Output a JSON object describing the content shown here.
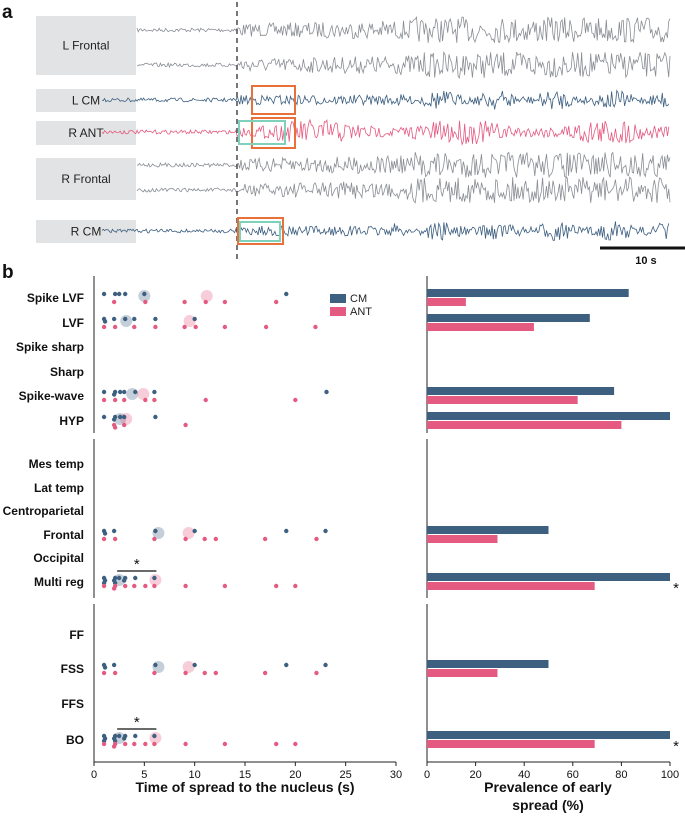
{
  "colors": {
    "cm": "#3d5f80",
    "ant": "#e55a80",
    "grey_trace": "#7d8288",
    "label_box": "#e2e3e4",
    "orange_box": "#e8703a",
    "green_box": "#7fd1bb",
    "axis": "#222222"
  },
  "panel_a": {
    "letter": "a",
    "channels": [
      {
        "label": "L Frontal",
        "color": "grey",
        "traces": 2,
        "amp": 0.2
      },
      {
        "label": "L CM",
        "color": "cm",
        "traces": 1,
        "amp": 0.45
      },
      {
        "label": "R ANT",
        "color": "ant",
        "traces": 1,
        "amp": 0.55
      },
      {
        "label": "R Frontal",
        "color": "grey",
        "traces": 2,
        "amp": 0.2
      },
      {
        "label": "R CM",
        "color": "cm",
        "traces": 1,
        "amp": 0.45
      }
    ],
    "scale_bar_label": "10 s",
    "scale_bar_seconds": 10,
    "seizure_onset_s": 10.5,
    "record_length_s": 58
  },
  "panel_b": {
    "letter": "b",
    "left_axis_title": "Time of spread to the nucleus (s)",
    "right_axis_title_line1": "Prevalence of early",
    "right_axis_title_line2": "spread (%)"
  },
  "chart_data": [
    {
      "type": "scatter",
      "title": "",
      "xlabel": "Time of spread to the nucleus (s)",
      "xlim": [
        0,
        30
      ],
      "xticks": [
        0,
        5,
        10,
        15,
        20,
        25,
        30
      ],
      "legend": [
        {
          "name": "CM",
          "color": "#3d5f80"
        },
        {
          "name": "ANT",
          "color": "#e55a80"
        }
      ],
      "legend_position": "top-right",
      "groups": [
        {
          "categories": [
            {
              "label": "Spike LVF",
              "cm": [
                1,
                2,
                2.5,
                3,
                5,
                19
              ],
              "ant": [
                2,
                5,
                9,
                11,
                13,
                18
              ],
              "cm_mean": 5,
              "ant_mean": 11.2
            },
            {
              "label": "LVF",
              "cm": [
                1,
                1,
                2,
                3,
                4,
                6,
                10
              ],
              "ant": [
                1,
                2,
                4,
                6,
                9,
                10,
                13,
                17,
                22
              ],
              "cm_mean": 3.2,
              "ant_mean": 9.5
            },
            {
              "label": "Spike sharp",
              "cm": [],
              "ant": []
            },
            {
              "label": "Sharp",
              "cm": [],
              "ant": []
            },
            {
              "label": "Spike-wave",
              "cm": [
                1,
                2,
                2,
                2.5,
                3,
                4,
                6,
                23
              ],
              "ant": [
                1,
                2,
                3,
                5,
                6,
                11,
                20
              ],
              "cm_mean": 3.8,
              "ant_mean": 4.9
            },
            {
              "label": "HYP",
              "cm": [
                1,
                2,
                2,
                2.5,
                3,
                6
              ],
              "ant": [
                2,
                2,
                3,
                9
              ],
              "cm_mean": 2.6,
              "ant_mean": 3.2
            }
          ]
        },
        {
          "categories": [
            {
              "label": "Mes temp",
              "cm": [],
              "ant": []
            },
            {
              "label": "Lat temp",
              "cm": [],
              "ant": []
            },
            {
              "label": "Centroparietal",
              "cm": [],
              "ant": []
            },
            {
              "label": "Frontal",
              "cm": [
                1,
                1,
                2,
                6,
                10,
                19,
                23
              ],
              "ant": [
                1,
                2,
                6,
                9,
                11,
                12,
                17,
                22
              ],
              "cm_mean": 6.4,
              "ant_mean": 9.4
            },
            {
              "label": "Occipital",
              "cm": [],
              "ant": []
            },
            {
              "label": "Multi reg",
              "cm": [
                1,
                1,
                1,
                2,
                2,
                2,
                2.5,
                3,
                3,
                4,
                6
              ],
              "ant": [
                1,
                2,
                2,
                3,
                4,
                5,
                6,
                9,
                13,
                18,
                20
              ],
              "cm_mean": 2.5,
              "ant_mean": 6.1,
              "significance": {
                "from": 2.3,
                "to": 6.2,
                "label": "*"
              }
            }
          ]
        },
        {
          "categories": [
            {
              "label": "FF",
              "cm": [],
              "ant": []
            },
            {
              "label": "FSS",
              "cm": [
                1,
                1,
                2,
                6,
                10,
                19,
                23
              ],
              "ant": [
                1,
                2,
                6,
                9,
                11,
                12,
                17,
                22
              ],
              "cm_mean": 6.4,
              "ant_mean": 9.4
            },
            {
              "label": "FFS",
              "cm": [],
              "ant": []
            },
            {
              "label": "BO",
              "cm": [
                1,
                1,
                1,
                2,
                2,
                2,
                2.5,
                3,
                3,
                4,
                6
              ],
              "ant": [
                1,
                2,
                2,
                3,
                4,
                5,
                6,
                9,
                13,
                18,
                20
              ],
              "cm_mean": 2.5,
              "ant_mean": 6.1,
              "significance": {
                "from": 2.3,
                "to": 6.2,
                "label": "*"
              }
            }
          ]
        }
      ]
    },
    {
      "type": "bar",
      "orientation": "horizontal",
      "xlabel": "Prevalence of early spread (%)",
      "xlim": [
        0,
        100
      ],
      "xticks": [
        0,
        20,
        40,
        60,
        80,
        100
      ],
      "series": [
        {
          "name": "CM",
          "color": "#3d5f80"
        },
        {
          "name": "ANT",
          "color": "#e55a80"
        }
      ],
      "groups": [
        {
          "categories": [
            {
              "label": "Spike LVF",
              "cm": 83,
              "ant": 16
            },
            {
              "label": "LVF",
              "cm": 67,
              "ant": 44
            },
            {
              "label": "Spike sharp",
              "cm": 0,
              "ant": 0
            },
            {
              "label": "Sharp",
              "cm": 0,
              "ant": 0
            },
            {
              "label": "Spike-wave",
              "cm": 77,
              "ant": 62
            },
            {
              "label": "HYP",
              "cm": 100,
              "ant": 80
            }
          ]
        },
        {
          "categories": [
            {
              "label": "Mes temp",
              "cm": 0,
              "ant": 0
            },
            {
              "label": "Lat temp",
              "cm": 0,
              "ant": 0
            },
            {
              "label": "Centroparietal",
              "cm": 0,
              "ant": 0
            },
            {
              "label": "Frontal",
              "cm": 50,
              "ant": 29
            },
            {
              "label": "Occipital",
              "cm": 0,
              "ant": 0
            },
            {
              "label": "Multi reg",
              "cm": 100,
              "ant": 69,
              "star": "*"
            }
          ]
        },
        {
          "categories": [
            {
              "label": "FF",
              "cm": 0,
              "ant": 0
            },
            {
              "label": "FSS",
              "cm": 50,
              "ant": 29
            },
            {
              "label": "FFS",
              "cm": 0,
              "ant": 0
            },
            {
              "label": "BO",
              "cm": 100,
              "ant": 69,
              "star": "*"
            }
          ]
        }
      ]
    }
  ]
}
